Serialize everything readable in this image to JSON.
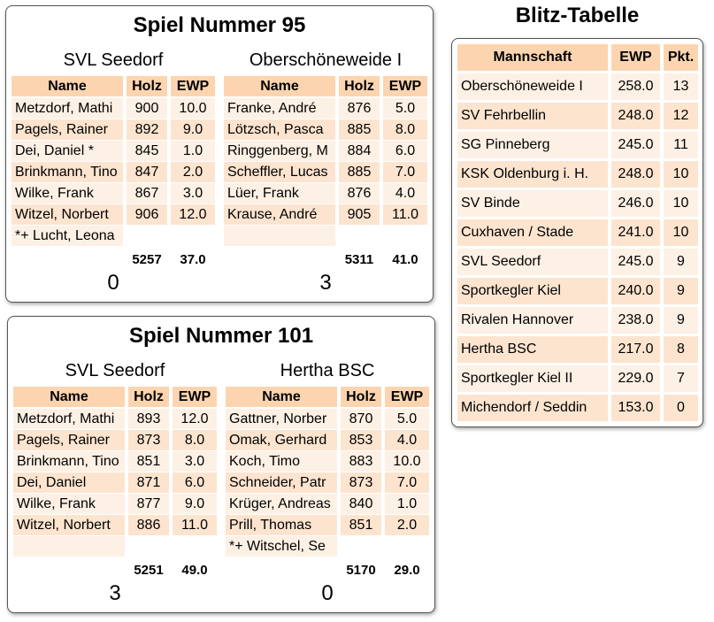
{
  "games": [
    {
      "title": "Spiel Nummer 95",
      "teams": [
        {
          "name": "SVL Seedorf",
          "columns": [
            "Name",
            "Holz",
            "EWP"
          ],
          "players": [
            [
              "Metzdorf, Mathi",
              "900",
              "10.0"
            ],
            [
              "Pagels, Rainer",
              "892",
              "9.0"
            ],
            [
              "Dei, Daniel *",
              "845",
              "1.0"
            ],
            [
              "Brinkmann, Tino",
              "847",
              "2.0"
            ],
            [
              "Wilke, Frank",
              "867",
              "3.0"
            ],
            [
              "Witzel, Norbert",
              "906",
              "12.0"
            ]
          ],
          "note": "*+ Lucht, Leona",
          "holz_total": "5257",
          "ewp_total": "37.0",
          "score": "0"
        },
        {
          "name": "Oberschöneweide I",
          "columns": [
            "Name",
            "Holz",
            "EWP"
          ],
          "players": [
            [
              "Franke, André",
              "876",
              "5.0"
            ],
            [
              "Lötzsch, Pasca",
              "885",
              "8.0"
            ],
            [
              "Ringgenberg, M",
              "884",
              "6.0"
            ],
            [
              "Scheffler, Lucas",
              "885",
              "7.0"
            ],
            [
              "Lüer, Frank",
              "876",
              "4.0"
            ],
            [
              "Krause, André",
              "905",
              "11.0"
            ]
          ],
          "holz_total": "5311",
          "ewp_total": "41.0",
          "score": "3"
        }
      ]
    },
    {
      "title": "Spiel Nummer 101",
      "teams": [
        {
          "name": "SVL Seedorf",
          "columns": [
            "Name",
            "Holz",
            "EWP"
          ],
          "players": [
            [
              "Metzdorf, Mathi",
              "893",
              "12.0"
            ],
            [
              "Pagels, Rainer",
              "873",
              "8.0"
            ],
            [
              "Brinkmann, Tino",
              "851",
              "3.0"
            ],
            [
              "Dei, Daniel",
              "871",
              "6.0"
            ],
            [
              "Wilke, Frank",
              "877",
              "9.0"
            ],
            [
              "Witzel, Norbert",
              "886",
              "11.0"
            ]
          ],
          "holz_total": "5251",
          "ewp_total": "49.0",
          "score": "3"
        },
        {
          "name": "Hertha BSC",
          "columns": [
            "Name",
            "Holz",
            "EWP"
          ],
          "players": [
            [
              "Gattner, Norber",
              "870",
              "5.0"
            ],
            [
              "Omak, Gerhard",
              "853",
              "4.0"
            ],
            [
              "Koch, Timo",
              "883",
              "10.0"
            ],
            [
              "Schneider, Patr",
              "873",
              "7.0"
            ],
            [
              "Krüger, Andreas",
              "840",
              "1.0"
            ],
            [
              "Prill, Thomas",
              "851",
              "2.0"
            ]
          ],
          "note": "*+ Witschel, Se",
          "holz_total": "5170",
          "ewp_total": "29.0",
          "score": "0"
        }
      ]
    }
  ],
  "blitz": {
    "title": "Blitz-Tabelle",
    "columns": [
      "Mannschaft",
      "EWP",
      "Pkt."
    ],
    "rows": [
      [
        "Oberschöneweide I",
        "258.0",
        "13"
      ],
      [
        "SV Fehrbellin",
        "248.0",
        "12"
      ],
      [
        "SG Pinneberg",
        "245.0",
        "11"
      ],
      [
        "KSK Oldenburg i. H.",
        "248.0",
        "10"
      ],
      [
        "SV Binde",
        "246.0",
        "10"
      ],
      [
        "Cuxhaven / Stade",
        "241.0",
        "10"
      ],
      [
        "SVL Seedorf",
        "245.0",
        "9"
      ],
      [
        "Sportkegler Kiel",
        "240.0",
        "9"
      ],
      [
        "Rivalen Hannover",
        "238.0",
        "9"
      ],
      [
        "Hertha BSC",
        "217.0",
        "8"
      ],
      [
        "Sportkegler Kiel II",
        "229.0",
        "7"
      ],
      [
        "Michendorf / Seddin",
        "153.0",
        "0"
      ]
    ]
  }
}
